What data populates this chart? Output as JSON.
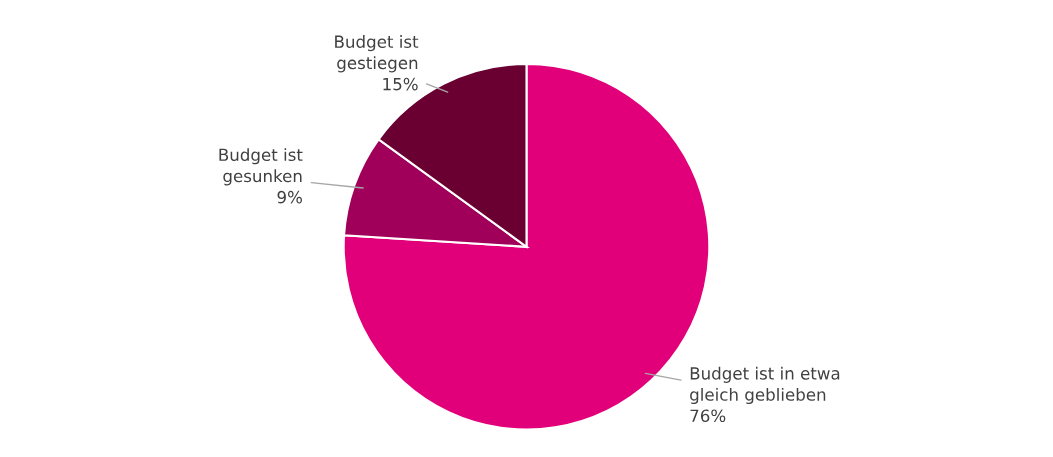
{
  "chart_data": {
    "type": "pie",
    "categories": [
      "Budget ist in etwa\ngleich geblieben",
      "Budget ist gesunken",
      "Budget ist gestiegen"
    ],
    "values": [
      76,
      9,
      15
    ],
    "colors": [
      "#e2007a",
      "#a0005a",
      "#6a0032"
    ],
    "value_labels": [
      "76%",
      "9%",
      "15%"
    ],
    "legend": false
  }
}
